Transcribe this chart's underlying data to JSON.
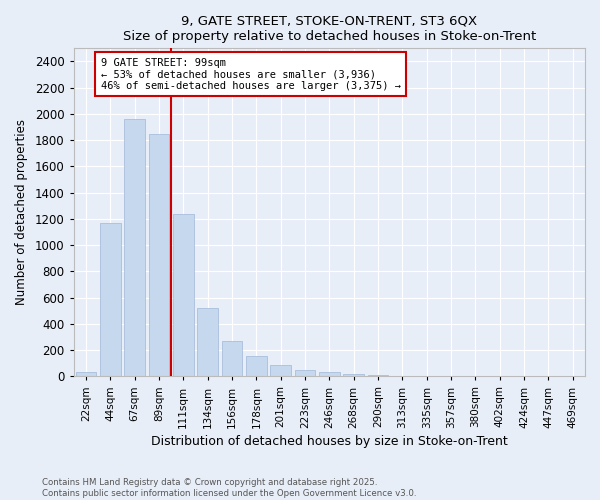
{
  "title": "9, GATE STREET, STOKE-ON-TRENT, ST3 6QX",
  "subtitle": "Size of property relative to detached houses in Stoke-on-Trent",
  "xlabel": "Distribution of detached houses by size in Stoke-on-Trent",
  "ylabel": "Number of detached properties",
  "annotation_line1": "9 GATE STREET: 99sqm",
  "annotation_line2": "← 53% of detached houses are smaller (3,936)",
  "annotation_line3": "46% of semi-detached houses are larger (3,375) →",
  "bar_color": "#c5d8ee",
  "bar_edge_color": "#a0b8d8",
  "line_color": "#cc0000",
  "annotation_box_color": "#cc0000",
  "background_color": "#e8eef8",
  "grid_color": "#ffffff",
  "footer_line1": "Contains HM Land Registry data © Crown copyright and database right 2025.",
  "footer_line2": "Contains public sector information licensed under the Open Government Licence v3.0.",
  "categories": [
    "22sqm",
    "44sqm",
    "67sqm",
    "89sqm",
    "111sqm",
    "134sqm",
    "156sqm",
    "178sqm",
    "201sqm",
    "223sqm",
    "246sqm",
    "268sqm",
    "290sqm",
    "313sqm",
    "335sqm",
    "357sqm",
    "380sqm",
    "402sqm",
    "424sqm",
    "447sqm",
    "469sqm"
  ],
  "values": [
    30,
    1170,
    1960,
    1850,
    1240,
    520,
    270,
    155,
    90,
    50,
    35,
    20,
    8,
    5,
    3,
    2,
    1,
    1,
    1,
    1,
    1
  ],
  "property_bin_index": 3,
  "ylim": [
    0,
    2500
  ],
  "yticks": [
    0,
    200,
    400,
    600,
    800,
    1000,
    1200,
    1400,
    1600,
    1800,
    2000,
    2200,
    2400
  ]
}
